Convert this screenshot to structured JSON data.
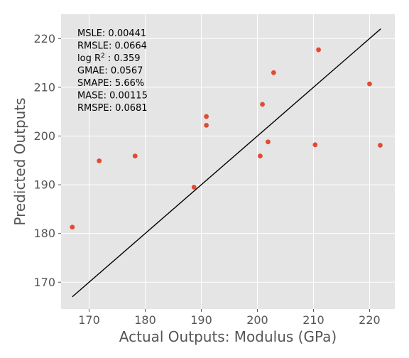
{
  "chart_data": {
    "type": "scatter",
    "xlabel": "Actual Outputs: Modulus (GPa)",
    "ylabel": "Predicted Outputs",
    "xlim": [
      165.0,
      224.5
    ],
    "ylim": [
      164.5,
      225.0
    ],
    "x_ticks": [
      170,
      180,
      190,
      200,
      210,
      220
    ],
    "y_ticks": [
      170,
      180,
      190,
      200,
      210,
      220
    ],
    "grid": true,
    "background": "#e5e5e5",
    "grid_color": "#ffffff",
    "point_color": "#e24a33",
    "line_color": "#000000",
    "points": [
      {
        "x": 167.0,
        "y": 181.3
      },
      {
        "x": 171.8,
        "y": 194.9
      },
      {
        "x": 178.2,
        "y": 195.9
      },
      {
        "x": 188.7,
        "y": 189.5
      },
      {
        "x": 190.9,
        "y": 204.0
      },
      {
        "x": 190.9,
        "y": 202.2
      },
      {
        "x": 200.5,
        "y": 195.9
      },
      {
        "x": 200.9,
        "y": 206.5
      },
      {
        "x": 201.9,
        "y": 198.8
      },
      {
        "x": 202.9,
        "y": 213.0
      },
      {
        "x": 210.3,
        "y": 198.2
      },
      {
        "x": 210.9,
        "y": 217.7
      },
      {
        "x": 220.0,
        "y": 210.7
      },
      {
        "x": 221.9,
        "y": 198.1
      }
    ],
    "identity_line": [
      {
        "x": 167.0,
        "y": 167.0
      },
      {
        "x": 222.0,
        "y": 222.0
      }
    ],
    "metrics": [
      {
        "label": "MSLE: 0.00441",
        "base": "",
        "sup": "",
        "after": ""
      },
      {
        "label": "RMSLE: 0.0664",
        "base": "",
        "sup": "",
        "after": ""
      },
      {
        "label": "",
        "base": "log R",
        "sup": "2",
        "after": " : 0.359"
      },
      {
        "label": "GMAE: 0.0567",
        "base": "",
        "sup": "",
        "after": ""
      },
      {
        "label": "SMAPE: 5.66%",
        "base": "",
        "sup": "",
        "after": ""
      },
      {
        "label": "MASE: 0.00115",
        "base": "",
        "sup": "",
        "after": ""
      },
      {
        "label": "RMSPE: 0.0681",
        "base": "",
        "sup": "",
        "after": ""
      }
    ]
  }
}
